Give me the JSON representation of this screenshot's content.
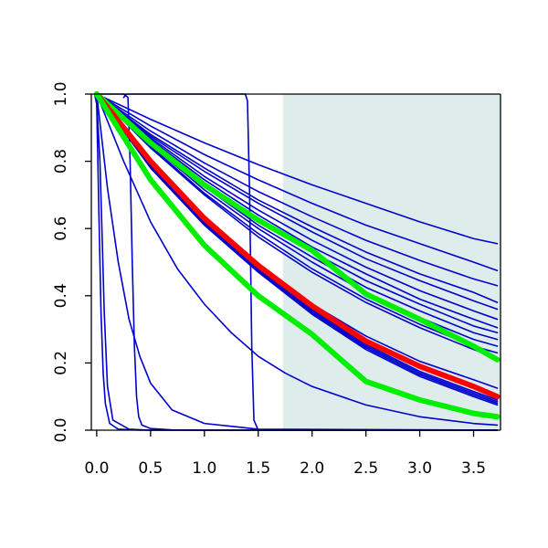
{
  "chart_data": {
    "type": "line",
    "title": "",
    "xlabel": "",
    "ylabel": "",
    "xlim": [
      -0.05,
      3.75
    ],
    "ylim": [
      0.0,
      1.0
    ],
    "grid": false,
    "legend": "none",
    "x_ticks": [
      "0.0",
      "0.5",
      "1.0",
      "1.5",
      "2.0",
      "2.5",
      "3.0",
      "3.5"
    ],
    "y_ticks": [
      "0.0",
      "0.2",
      "0.4",
      "0.6",
      "0.8",
      "1.0"
    ],
    "shaded_region": {
      "x_from": 1.73,
      "x_to": 3.75,
      "color": "#deecec"
    },
    "colors": {
      "blue": "#0000cc",
      "red": "#ff0000",
      "green": "#00ee00"
    },
    "series": [
      {
        "color": "blue",
        "width": "thin",
        "x": [
          0,
          0.5,
          1,
          1.5,
          2,
          2.5,
          3,
          3.5,
          3.72
        ],
        "y": [
          1.0,
          0.925,
          0.855,
          0.79,
          0.73,
          0.675,
          0.62,
          0.57,
          0.555
        ]
      },
      {
        "color": "blue",
        "width": "thin",
        "x": [
          0,
          0.5,
          1,
          1.5,
          2,
          2.5,
          3,
          3.5,
          3.72
        ],
        "y": [
          1.0,
          0.905,
          0.82,
          0.745,
          0.675,
          0.61,
          0.555,
          0.5,
          0.475
        ]
      },
      {
        "color": "blue",
        "width": "thin",
        "x": [
          0,
          0.5,
          1,
          1.5,
          2,
          2.5,
          3,
          3.5,
          3.72
        ],
        "y": [
          1.0,
          0.89,
          0.795,
          0.71,
          0.635,
          0.565,
          0.505,
          0.45,
          0.43
        ]
      },
      {
        "color": "blue",
        "width": "thin",
        "x": [
          0,
          0.5,
          1,
          1.5,
          2,
          2.5,
          3,
          3.5,
          3.72
        ],
        "y": [
          1.0,
          0.88,
          0.78,
          0.685,
          0.605,
          0.53,
          0.465,
          0.41,
          0.38
        ]
      },
      {
        "color": "blue",
        "width": "thin",
        "x": [
          0,
          0.5,
          1,
          1.5,
          2,
          2.5,
          3,
          3.5,
          3.72
        ],
        "y": [
          1.0,
          0.875,
          0.77,
          0.675,
          0.59,
          0.51,
          0.445,
          0.385,
          0.36
        ]
      },
      {
        "color": "blue",
        "width": "thin",
        "x": [
          0,
          0.5,
          1,
          1.5,
          2,
          2.5,
          3,
          3.5,
          3.72
        ],
        "y": [
          1.0,
          0.87,
          0.755,
          0.655,
          0.565,
          0.485,
          0.415,
          0.355,
          0.33
        ]
      },
      {
        "color": "blue",
        "width": "thin",
        "x": [
          0,
          0.5,
          1,
          1.5,
          2,
          2.5,
          3,
          3.5,
          3.72
        ],
        "y": [
          1.0,
          0.865,
          0.745,
          0.64,
          0.545,
          0.465,
          0.39,
          0.33,
          0.305
        ]
      },
      {
        "color": "blue",
        "width": "thin",
        "x": [
          0,
          0.5,
          1,
          1.5,
          2,
          2.5,
          3,
          3.5,
          3.72
        ],
        "y": [
          1.0,
          0.86,
          0.735,
          0.625,
          0.53,
          0.445,
          0.375,
          0.31,
          0.29
        ]
      },
      {
        "color": "blue",
        "width": "thin",
        "x": [
          0,
          0.5,
          1,
          1.5,
          2,
          2.5,
          3,
          3.5,
          3.72
        ],
        "y": [
          1.0,
          0.855,
          0.725,
          0.61,
          0.515,
          0.425,
          0.355,
          0.29,
          0.27
        ]
      },
      {
        "color": "blue",
        "width": "thin",
        "x": [
          0,
          0.5,
          1,
          1.5,
          2,
          2.5,
          3,
          3.5,
          3.72
        ],
        "y": [
          1.0,
          0.85,
          0.715,
          0.6,
          0.5,
          0.41,
          0.335,
          0.27,
          0.25
        ]
      },
      {
        "color": "blue",
        "width": "thin",
        "x": [
          0,
          0.5,
          1,
          1.5,
          2,
          2.5,
          3,
          3.5,
          3.72
        ],
        "y": [
          1.0,
          0.845,
          0.705,
          0.585,
          0.48,
          0.39,
          0.315,
          0.25,
          0.23
        ]
      },
      {
        "color": "blue",
        "width": "thin",
        "x": [
          0,
          0.5,
          1,
          1.5,
          2,
          2.5,
          3,
          3.5,
          3.72
        ],
        "y": [
          1.0,
          0.84,
          0.7,
          0.575,
          0.47,
          0.38,
          0.305,
          0.24,
          0.215
        ]
      },
      {
        "color": "green",
        "width": "thick",
        "x": [
          0,
          0.5,
          1,
          1.5,
          2,
          2.5,
          3,
          3.5,
          3.72
        ],
        "y": [
          1.0,
          0.855,
          0.73,
          0.625,
          0.535,
          0.405,
          0.33,
          0.25,
          0.21
        ]
      },
      {
        "color": "blue",
        "width": "thin",
        "x": [
          0,
          0.5,
          1,
          1.5,
          2,
          2.5,
          3,
          3.5,
          3.72
        ],
        "y": [
          1.0,
          0.79,
          0.62,
          0.49,
          0.375,
          0.28,
          0.205,
          0.15,
          0.125
        ]
      },
      {
        "color": "red",
        "width": "thick",
        "x": [
          0,
          0.5,
          1,
          1.5,
          2,
          2.5,
          3,
          3.5,
          3.72
        ],
        "y": [
          1.0,
          0.8,
          0.63,
          0.49,
          0.37,
          0.265,
          0.19,
          0.13,
          0.1
        ]
      },
      {
        "color": "blue",
        "width": "thin",
        "x": [
          0,
          0.5,
          1,
          1.5,
          2,
          2.5,
          3,
          3.5,
          3.72
        ],
        "y": [
          1.0,
          0.795,
          0.625,
          0.485,
          0.36,
          0.255,
          0.175,
          0.115,
          0.09
        ]
      },
      {
        "color": "blue",
        "width": "thin",
        "x": [
          0,
          0.5,
          1,
          1.5,
          2,
          2.5,
          3,
          3.5,
          3.72
        ],
        "y": [
          1.0,
          0.79,
          0.62,
          0.48,
          0.355,
          0.25,
          0.17,
          0.11,
          0.085
        ]
      },
      {
        "color": "blue",
        "width": "thin",
        "x": [
          0,
          0.5,
          1,
          1.5,
          2,
          2.5,
          3,
          3.5,
          3.72
        ],
        "y": [
          1.0,
          0.785,
          0.615,
          0.475,
          0.35,
          0.245,
          0.165,
          0.105,
          0.08
        ]
      },
      {
        "color": "blue",
        "width": "thin",
        "x": [
          0,
          0.5,
          1,
          1.5,
          2,
          2.5,
          3,
          3.5,
          3.72
        ],
        "y": [
          1.0,
          0.78,
          0.61,
          0.47,
          0.345,
          0.24,
          0.16,
          0.1,
          0.075
        ]
      },
      {
        "color": "green",
        "width": "thick",
        "x": [
          0,
          0.5,
          1,
          1.5,
          2,
          2.5,
          3,
          3.5,
          3.72
        ],
        "y": [
          1.0,
          0.745,
          0.55,
          0.4,
          0.285,
          0.145,
          0.09,
          0.05,
          0.04
        ]
      },
      {
        "color": "blue",
        "width": "thin",
        "x": [
          0,
          0.25,
          0.5,
          0.75,
          1,
          1.25,
          1.5,
          1.75,
          2,
          2.5,
          3,
          3.5,
          3.72
        ],
        "y": [
          1.0,
          0.8,
          0.62,
          0.48,
          0.375,
          0.29,
          0.22,
          0.17,
          0.13,
          0.075,
          0.04,
          0.02,
          0.015
        ]
      },
      {
        "color": "blue",
        "width": "thin",
        "x": [
          0,
          0.1,
          0.2,
          0.3,
          0.4,
          0.5,
          0.7,
          1.0,
          1.5,
          3.72
        ],
        "y": [
          1.0,
          0.72,
          0.5,
          0.33,
          0.22,
          0.14,
          0.06,
          0.02,
          0.003,
          0.0
        ]
      },
      {
        "color": "blue",
        "width": "thin",
        "x": [
          -0.02,
          0.0,
          0.02,
          0.04,
          0.06,
          0.08,
          0.12,
          0.2,
          0.4,
          3.72
        ],
        "y": [
          1.0,
          0.97,
          0.65,
          0.35,
          0.17,
          0.08,
          0.02,
          0.003,
          0.0,
          0.0
        ]
      },
      {
        "color": "blue",
        "width": "thin",
        "x": [
          -0.02,
          0.0,
          0.03,
          0.05,
          0.07,
          0.1,
          0.15,
          0.3,
          0.5,
          3.72
        ],
        "y": [
          1.0,
          0.98,
          0.8,
          0.58,
          0.35,
          0.13,
          0.03,
          0.003,
          0.0,
          0.0
        ]
      },
      {
        "color": "blue",
        "width": "thin",
        "x": [
          -0.02,
          0.25,
          0.29,
          0.31,
          0.33,
          0.35,
          0.37,
          0.39,
          0.42,
          0.5,
          0.7,
          1.0,
          3.72
        ],
        "y": [
          1.0,
          1.0,
          0.99,
          0.8,
          0.5,
          0.25,
          0.1,
          0.04,
          0.015,
          0.005,
          0.001,
          0.0,
          0.0
        ]
      },
      {
        "color": "blue",
        "width": "thin",
        "x": [
          0.25,
          0.28,
          0.3,
          1.38,
          1.4,
          1.42,
          1.44,
          1.46,
          1.5,
          3.72
        ],
        "y": [
          0.99,
          1.0,
          1.0,
          1.0,
          0.98,
          0.7,
          0.25,
          0.03,
          0.0,
          0.0
        ]
      }
    ]
  }
}
